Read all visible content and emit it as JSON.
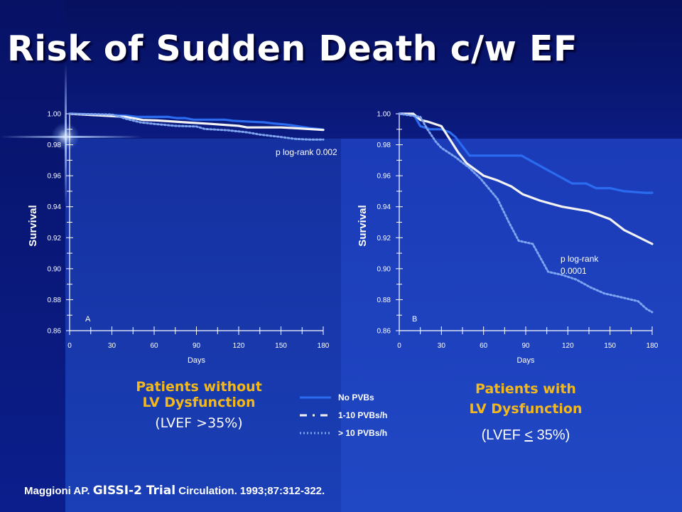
{
  "title": "Risk of Sudden Death c/w EF",
  "colors": {
    "no_pvbs": "#2a6bf0",
    "pvbs_1_10": "#f2f2f2",
    "pvbs_gt10": "#7ea4f0",
    "caption_gold": "#f2b81c",
    "axis": "#ffffff"
  },
  "chart_data": [
    {
      "type": "line",
      "panel_label": "A",
      "ylabel": "Survival",
      "xlabel": "Days",
      "xlim": [
        0,
        180
      ],
      "ylim": [
        0.86,
        1.0
      ],
      "xticks": [
        "0",
        "30",
        "60",
        "90",
        "120",
        "150",
        "180"
      ],
      "yticks": [
        "1.00",
        "0.98",
        "0.96",
        "0.94",
        "0.92",
        "0.90",
        "0.88",
        "0.86"
      ],
      "annotation": "p log-rank 0.002",
      "series": [
        {
          "name": "No PVBs",
          "style": "solid-blue",
          "points": [
            [
              0,
              1.0
            ],
            [
              20,
              0.9995
            ],
            [
              40,
              0.9988
            ],
            [
              48,
              0.998
            ],
            [
              70,
              0.998
            ],
            [
              76,
              0.9972
            ],
            [
              82,
              0.9972
            ],
            [
              88,
              0.9962
            ],
            [
              110,
              0.9962
            ],
            [
              116,
              0.9955
            ],
            [
              130,
              0.9948
            ],
            [
              138,
              0.9945
            ],
            [
              144,
              0.9938
            ],
            [
              152,
              0.9932
            ],
            [
              158,
              0.9925
            ],
            [
              170,
              0.9908
            ],
            [
              180,
              0.9898
            ]
          ]
        },
        {
          "name": "1-10 PVBs/h",
          "style": "solid-white",
          "points": [
            [
              0,
              1.0
            ],
            [
              20,
              0.999
            ],
            [
              40,
              0.998
            ],
            [
              52,
              0.996
            ],
            [
              62,
              0.9957
            ],
            [
              82,
              0.9945
            ],
            [
              100,
              0.9935
            ],
            [
              120,
              0.9922
            ],
            [
              126,
              0.9912
            ],
            [
              150,
              0.9912
            ],
            [
              158,
              0.9908
            ],
            [
              180,
              0.9896
            ]
          ]
        },
        {
          "name": "> 10 PVBs/h",
          "style": "dotted",
          "points": [
            [
              0,
              1.0
            ],
            [
              30,
              0.9995
            ],
            [
              34,
              0.9985
            ],
            [
              40,
              0.9968
            ],
            [
              50,
              0.9945
            ],
            [
              60,
              0.9935
            ],
            [
              75,
              0.9922
            ],
            [
              90,
              0.9918
            ],
            [
              96,
              0.9902
            ],
            [
              112,
              0.9894
            ],
            [
              126,
              0.988
            ],
            [
              135,
              0.9866
            ],
            [
              150,
              0.985
            ],
            [
              160,
              0.9838
            ],
            [
              170,
              0.9834
            ],
            [
              180,
              0.9834
            ]
          ]
        }
      ]
    },
    {
      "type": "line",
      "panel_label": "B",
      "ylabel": "Survival",
      "xlabel": "Days",
      "xlim": [
        0,
        180
      ],
      "ylim": [
        0.86,
        1.0
      ],
      "xticks": [
        "0",
        "30",
        "60",
        "90",
        "120",
        "150",
        "180"
      ],
      "yticks": [
        "1.00",
        "0.98",
        "0.96",
        "0.94",
        "0.92",
        "0.90",
        "0.88",
        "0.86"
      ],
      "annotation": "p log-rank 0.0001",
      "series": [
        {
          "name": "No PVBs",
          "style": "solid-blue",
          "points": [
            [
              0,
              1.0
            ],
            [
              10,
              1.0
            ],
            [
              15,
              0.992
            ],
            [
              22,
              0.99
            ],
            [
              30,
              0.99
            ],
            [
              36,
              0.988
            ],
            [
              40,
              0.985
            ],
            [
              50,
              0.973
            ],
            [
              87,
              0.973
            ],
            [
              93,
              0.97
            ],
            [
              103,
              0.965
            ],
            [
              113,
              0.96
            ],
            [
              123,
              0.955
            ],
            [
              133,
              0.955
            ],
            [
              140,
              0.952
            ],
            [
              150,
              0.952
            ],
            [
              160,
              0.95
            ],
            [
              175,
              0.949
            ],
            [
              180,
              0.949
            ]
          ]
        },
        {
          "name": "1-10 PVBs/h",
          "style": "solid-white",
          "points": [
            [
              0,
              1.0
            ],
            [
              10,
              1.0
            ],
            [
              15,
              0.996
            ],
            [
              20,
              0.995
            ],
            [
              30,
              0.992
            ],
            [
              42,
              0.975
            ],
            [
              48,
              0.968
            ],
            [
              60,
              0.96
            ],
            [
              70,
              0.957
            ],
            [
              80,
              0.953
            ],
            [
              88,
              0.948
            ],
            [
              100,
              0.944
            ],
            [
              108,
              0.942
            ],
            [
              116,
              0.94
            ],
            [
              135,
              0.937
            ],
            [
              150,
              0.932
            ],
            [
              160,
              0.925
            ],
            [
              180,
              0.916
            ]
          ]
        },
        {
          "name": "> 10 PVBs/h",
          "style": "dotted",
          "points": [
            [
              0,
              1.0
            ],
            [
              15,
              0.998
            ],
            [
              20,
              0.99
            ],
            [
              26,
              0.982
            ],
            [
              30,
              0.978
            ],
            [
              40,
              0.972
            ],
            [
              50,
              0.965
            ],
            [
              58,
              0.958
            ],
            [
              70,
              0.945
            ],
            [
              78,
              0.93
            ],
            [
              85,
              0.918
            ],
            [
              95,
              0.916
            ],
            [
              106,
              0.898
            ],
            [
              116,
              0.896
            ],
            [
              126,
              0.893
            ],
            [
              136,
              0.888
            ],
            [
              146,
              0.884
            ],
            [
              156,
              0.882
            ],
            [
              170,
              0.879
            ],
            [
              176,
              0.874
            ],
            [
              180,
              0.872
            ]
          ]
        }
      ]
    }
  ],
  "captions": {
    "left_line1": "Patients without",
    "left_line2": "LV Dysfunction",
    "left_sub_pre": "(LVEF >35%)",
    "right_line1": "Patients with",
    "right_line2": "LV Dysfunction",
    "right_sub_pre": "(LVEF ",
    "right_sub_lt": "<",
    "right_sub_post": " 35%)"
  },
  "legend": [
    {
      "label": "No PVBs",
      "style": "solid-blue"
    },
    {
      "label": "1-10 PVBs/h",
      "style": "dashdot-white"
    },
    {
      "label": "> 10 PVBs/h",
      "style": "dotted"
    }
  ],
  "footer": {
    "author": "Maggioni AP.",
    "trial": "GISSI-2 Trial",
    "citation": "Circulation. 1993;87:312-322."
  }
}
